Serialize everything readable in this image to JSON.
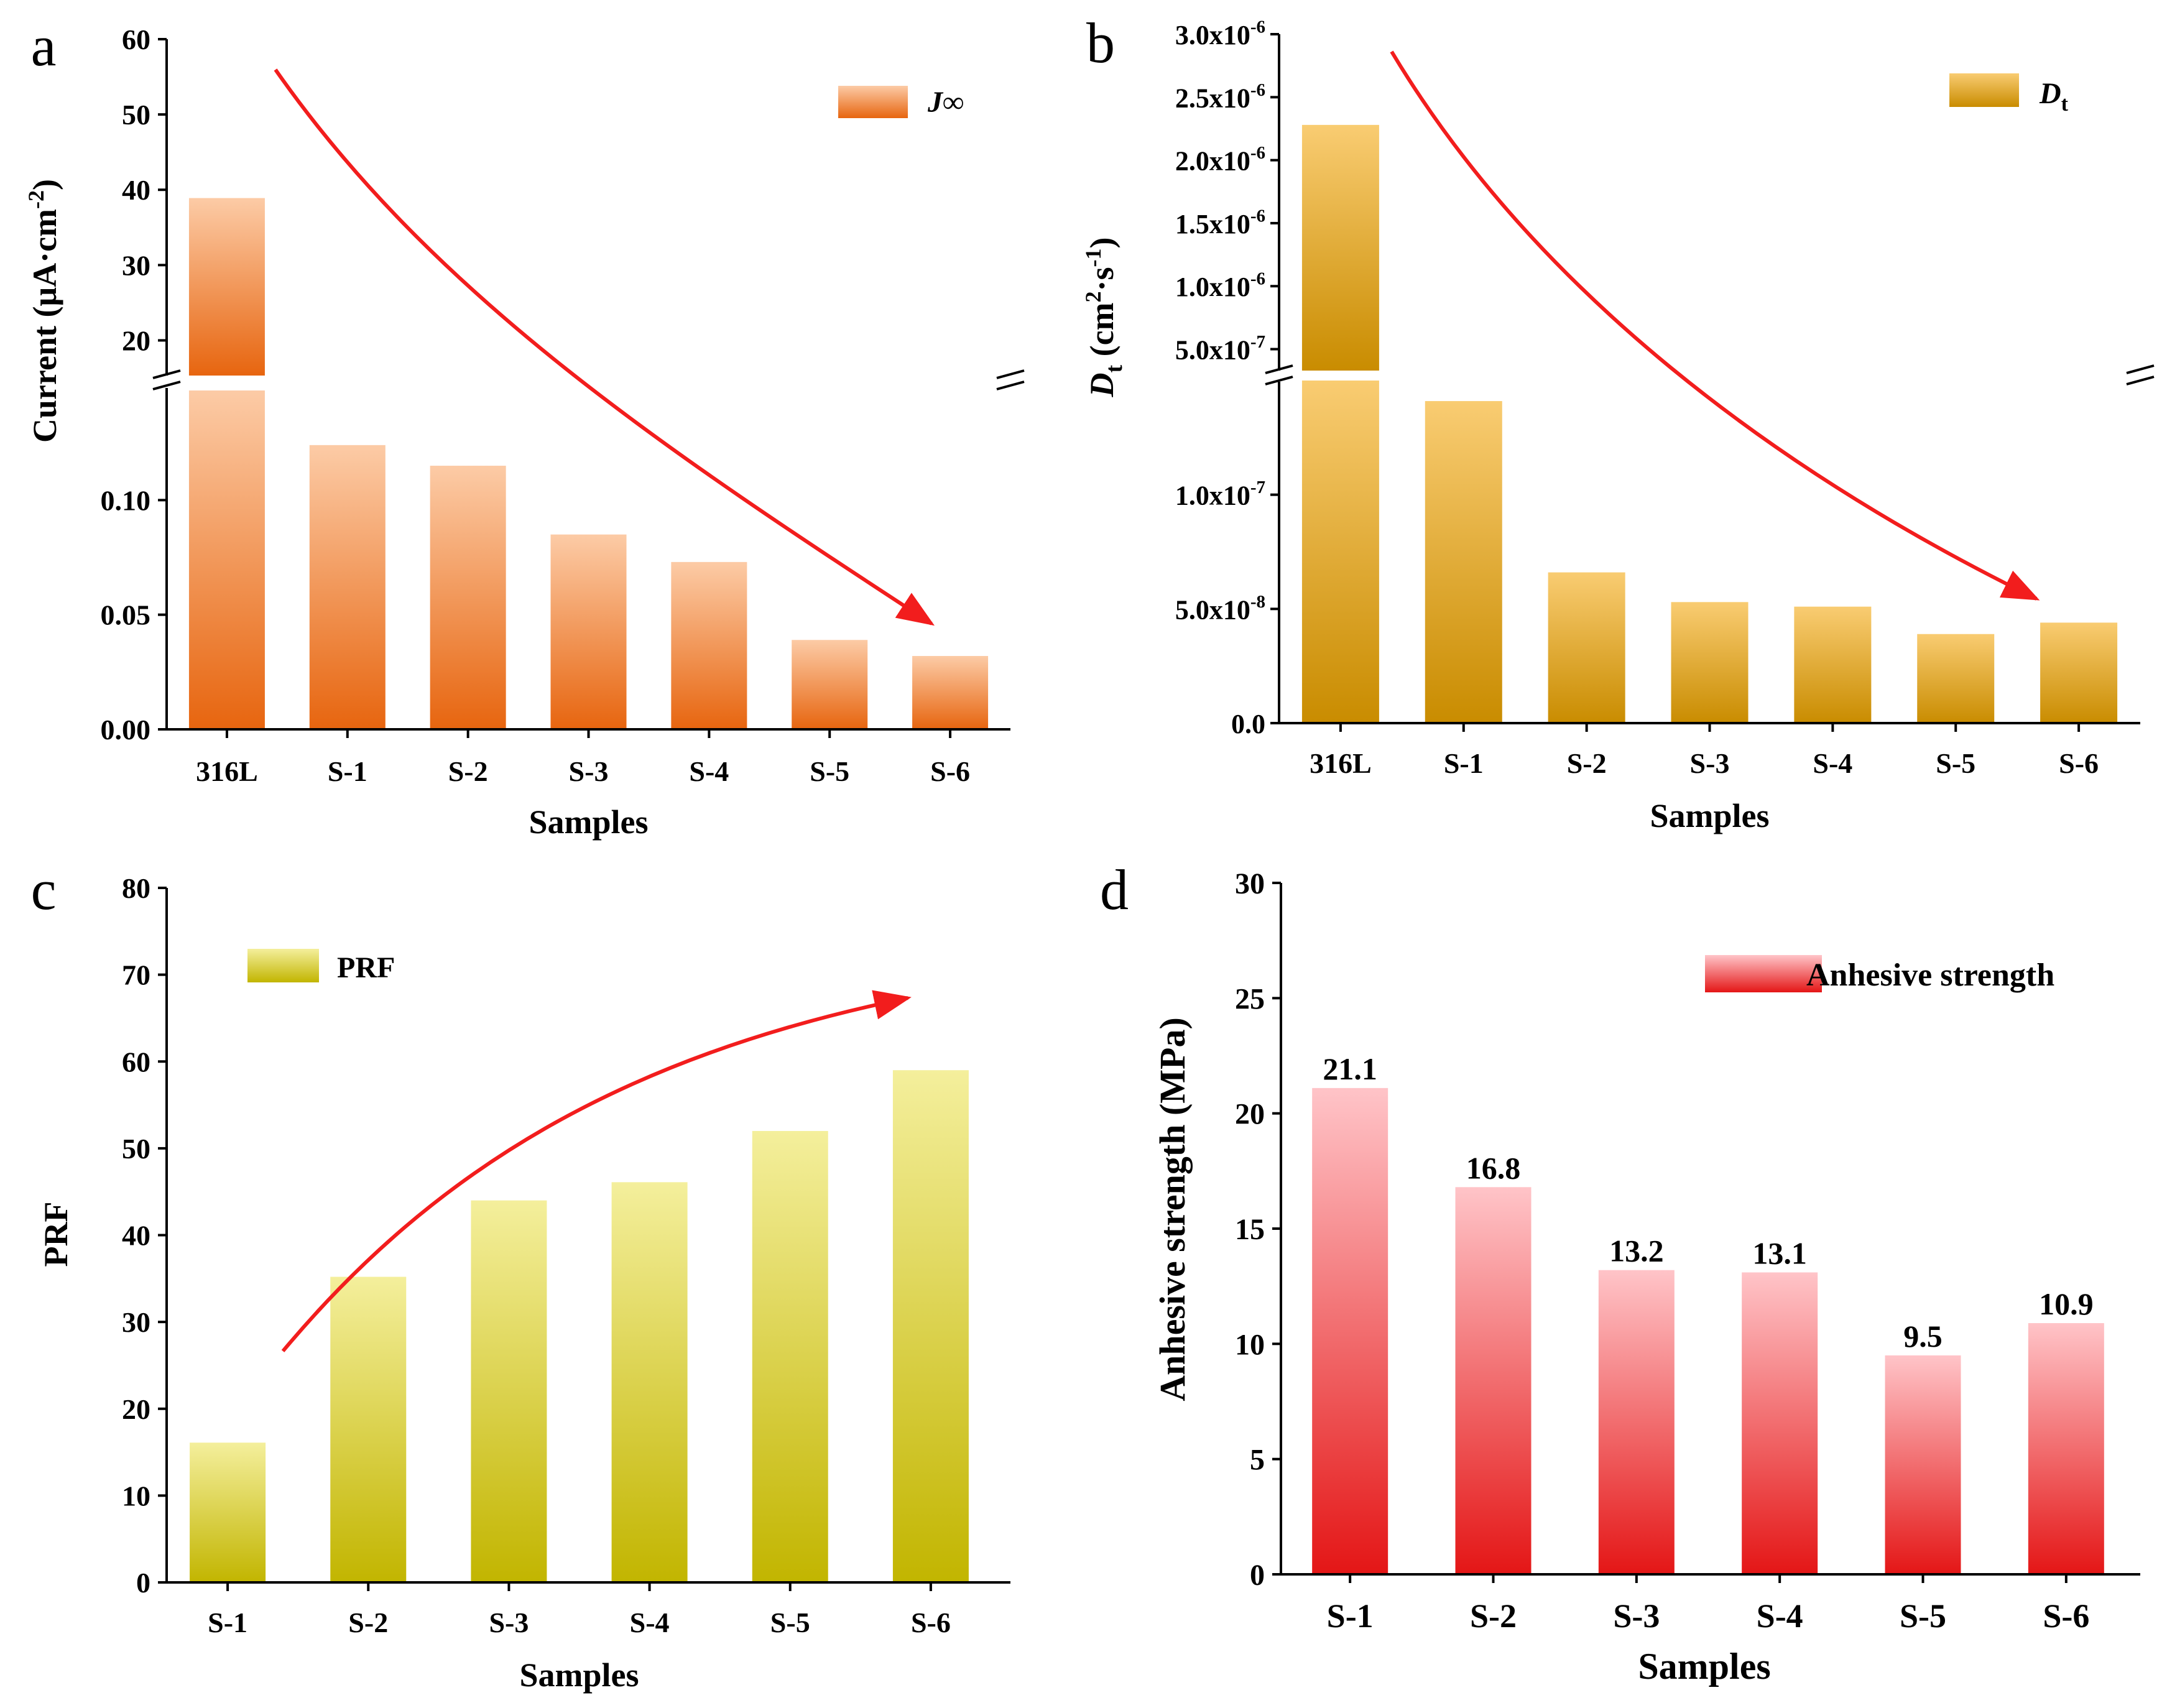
{
  "colors": {
    "orange_top": "#FCCBA6",
    "orange_bottom": "#E7650F",
    "gold_top": "#F9CC72",
    "gold_bottom": "#C98C00",
    "olive_top": "#F4EF9C",
    "olive_bottom": "#C2B500",
    "pink_top": "#FFC4C8",
    "pink_bottom": "#E41616",
    "arrow": "#F21D1D"
  },
  "chart_data": [
    {
      "panel": "a",
      "type": "bar",
      "broken_axis": true,
      "categories": [
        "316L",
        "S-1",
        "S-2",
        "S-3",
        "S-4",
        "S-5",
        "S-6"
      ],
      "values": [
        38.9,
        0.124,
        0.115,
        0.085,
        0.073,
        0.039,
        0.032
      ],
      "series_name": "J∞",
      "xlabel": "Samples",
      "ylabel": "Current (μA·cm⁻²)",
      "lower_range": [
        0,
        0.15
      ],
      "upper_range": [
        15,
        60
      ],
      "lower_ticks": [
        "0.00",
        "0.05",
        "0.10"
      ],
      "upper_ticks": [
        "20",
        "30",
        "40",
        "50",
        "60"
      ],
      "trend": "decreasing"
    },
    {
      "panel": "b",
      "type": "bar",
      "broken_axis": true,
      "categories": [
        "316L",
        "S-1",
        "S-2",
        "S-3",
        "S-4",
        "S-5",
        "S-6"
      ],
      "values": [
        2.28e-06,
        1.41e-07,
        6.6e-08,
        5.3e-08,
        5.1e-08,
        3.9e-08,
        4.4e-08
      ],
      "series_name": "Dt",
      "xlabel": "Samples",
      "ylabel": "Dt (cm²·s⁻¹)",
      "lower_range": [
        0,
        1.5e-07
      ],
      "upper_range": [
        3.2e-07,
        3e-06
      ],
      "lower_ticks": [
        "0.0",
        "5.0x10⁻⁸",
        "1.0x10⁻⁷"
      ],
      "upper_ticks": [
        "5.0x10⁻⁷",
        "1.0x10⁻⁶",
        "1.5x10⁻⁶",
        "2.0x10⁻⁶",
        "2.5x10⁻⁶",
        "3.0x10⁻⁶"
      ],
      "trend": "decreasing"
    },
    {
      "panel": "c",
      "type": "bar",
      "categories": [
        "S-1",
        "S-2",
        "S-3",
        "S-4",
        "S-5",
        "S-6"
      ],
      "values": [
        16.1,
        35.2,
        44.0,
        46.1,
        52.0,
        59.0
      ],
      "series_name": "PRF",
      "xlabel": "Samples",
      "ylabel": "PRF",
      "ylim": [
        0,
        80
      ],
      "yticks": [
        "0",
        "10",
        "20",
        "30",
        "40",
        "50",
        "60",
        "70",
        "80"
      ],
      "trend": "increasing"
    },
    {
      "panel": "d",
      "type": "bar",
      "categories": [
        "S-1",
        "S-2",
        "S-3",
        "S-4",
        "S-5",
        "S-6"
      ],
      "values": [
        21.1,
        16.8,
        13.2,
        13.1,
        9.5,
        10.9
      ],
      "data_labels": [
        "21.1",
        "16.8",
        "13.2",
        "13.1",
        "9.5",
        "10.9"
      ],
      "series_name": "Anhesive strength",
      "xlabel": "Samples",
      "ylabel": "Anhesive strength (MPa)",
      "ylim": [
        0,
        30
      ],
      "yticks": [
        "0",
        "5",
        "10",
        "15",
        "20",
        "25",
        "30"
      ]
    }
  ]
}
